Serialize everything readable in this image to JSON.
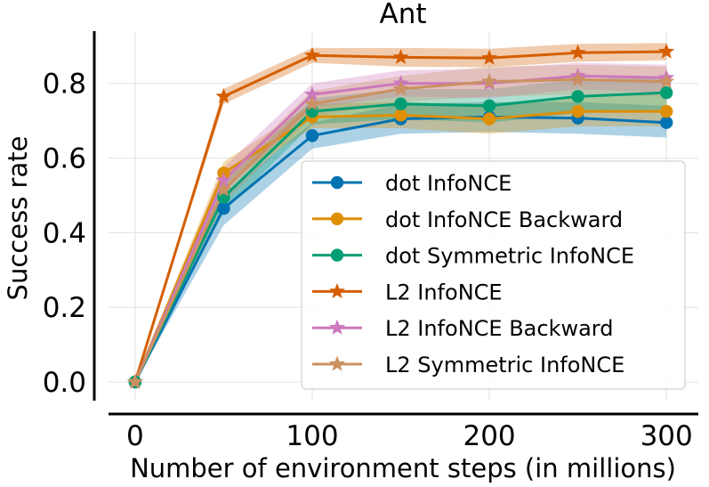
{
  "chart_data": {
    "type": "line",
    "title": "Ant",
    "xlabel": "Number of environment steps (in millions)",
    "ylabel": "Success rate",
    "xlim": [
      -15,
      318
    ],
    "ylim": [
      -0.05,
      0.94
    ],
    "xticks": [
      0,
      100,
      200,
      300
    ],
    "xtick_labels": [
      "0",
      "100",
      "200",
      "300"
    ],
    "yticks": [
      0.0,
      0.2,
      0.4,
      0.6,
      0.8
    ],
    "ytick_labels": [
      "0.0",
      "0.2",
      "0.4",
      "0.6",
      "0.8"
    ],
    "grid": true,
    "legend_position": "center-right",
    "x": [
      0,
      50,
      100,
      150,
      200,
      250,
      300
    ],
    "series": [
      {
        "name": "dot InfoNCE",
        "color": "#0173b2",
        "marker": "circle",
        "values": [
          0.0,
          0.465,
          0.66,
          0.705,
          0.71,
          0.707,
          0.695
        ],
        "lower": [
          0.0,
          0.42,
          0.625,
          0.665,
          0.67,
          0.665,
          0.655
        ],
        "upper": [
          0.0,
          0.505,
          0.695,
          0.745,
          0.75,
          0.75,
          0.74
        ]
      },
      {
        "name": "dot InfoNCE Backward",
        "color": "#de8f05",
        "marker": "circle",
        "values": [
          0.0,
          0.56,
          0.71,
          0.715,
          0.705,
          0.725,
          0.725
        ],
        "lower": [
          0.0,
          0.53,
          0.68,
          0.68,
          0.665,
          0.685,
          0.685
        ],
        "upper": [
          0.0,
          0.59,
          0.745,
          0.75,
          0.745,
          0.765,
          0.77
        ]
      },
      {
        "name": "dot Symmetric InfoNCE",
        "color": "#029e73",
        "marker": "circle",
        "values": [
          0.0,
          0.495,
          0.725,
          0.745,
          0.74,
          0.765,
          0.775
        ],
        "lower": [
          0.0,
          0.455,
          0.69,
          0.705,
          0.695,
          0.72,
          0.73
        ],
        "upper": [
          0.0,
          0.535,
          0.76,
          0.785,
          0.785,
          0.81,
          0.82
        ]
      },
      {
        "name": "L2 InfoNCE",
        "color": "#d55e00",
        "marker": "star",
        "values": [
          0.0,
          0.765,
          0.875,
          0.87,
          0.868,
          0.882,
          0.885
        ],
        "lower": [
          0.0,
          0.745,
          0.855,
          0.845,
          0.843,
          0.858,
          0.862
        ],
        "upper": [
          0.0,
          0.785,
          0.895,
          0.895,
          0.893,
          0.906,
          0.908
        ]
      },
      {
        "name": "L2 InfoNCE Backward",
        "color": "#cc78bc",
        "marker": "star",
        "values": [
          0.0,
          0.54,
          0.77,
          0.8,
          0.8,
          0.82,
          0.815
        ],
        "lower": [
          0.0,
          0.505,
          0.735,
          0.765,
          0.76,
          0.785,
          0.775
        ],
        "upper": [
          0.0,
          0.575,
          0.8,
          0.835,
          0.84,
          0.855,
          0.85
        ]
      },
      {
        "name": "L2 Symmetric InfoNCE",
        "color": "#ca9161",
        "marker": "star",
        "values": [
          0.0,
          0.515,
          0.745,
          0.785,
          0.805,
          0.81,
          0.805
        ],
        "lower": [
          0.0,
          0.48,
          0.71,
          0.75,
          0.765,
          0.77,
          0.765
        ],
        "upper": [
          0.0,
          0.55,
          0.78,
          0.82,
          0.845,
          0.85,
          0.845
        ]
      }
    ]
  }
}
